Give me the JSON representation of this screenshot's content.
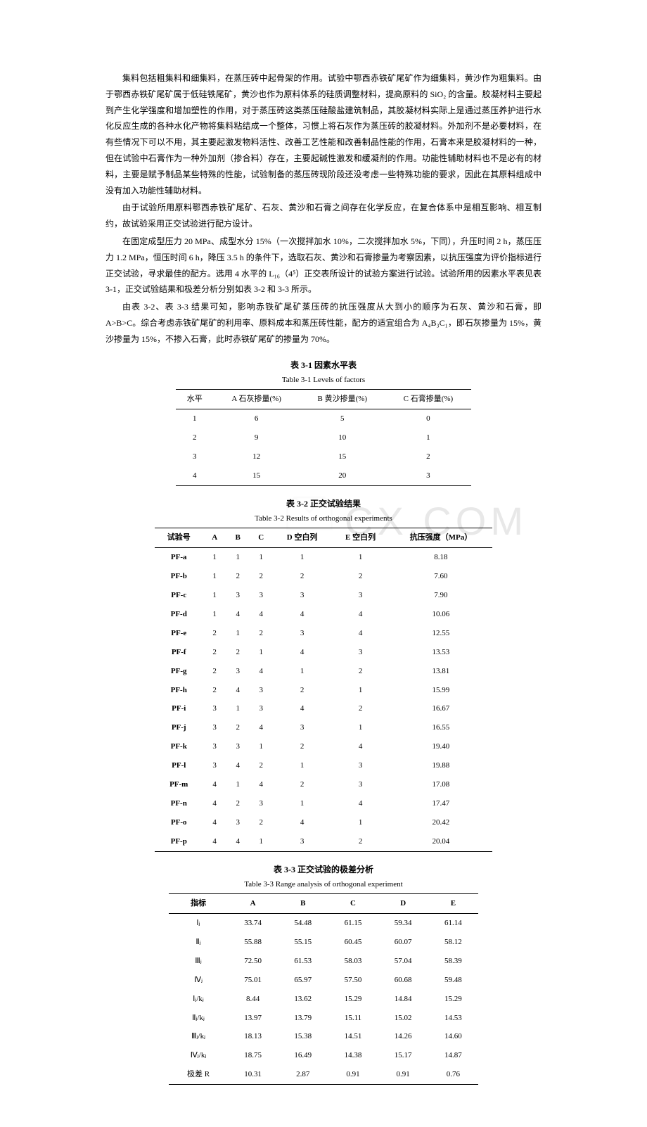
{
  "paragraphs": [
    "集料包括粗集料和细集料，在蒸压砖中起骨架的作用。试验中鄂西赤铁矿尾矿作为细集料，黄沙作为粗集料。由于鄂西赤铁矿尾矿属于低硅铁尾矿，黄沙也作为原料体系的硅质调整材料，提高原料的 SiO₂ 的含量。胶凝材料主要起到产生化学强度和增加塑性的作用，对于蒸压砖这类蒸压硅酸盐建筑制品，其胶凝材料实际上是通过蒸压养护进行水化反应生成的各种水化产物将集料粘结成一个整体，习惯上将石灰作为蒸压砖的胶凝材料。外加剂不是必要材料，在有些情况下可以不用，其主要起激发物料活性、改善工艺性能和改善制品性能的作用，石膏本来是胶凝材料的一种，但在试验中石膏作为一种外加剂（掺合料）存在，主要起碱性激发和缓凝剂的作用。功能性辅助材料也不是必有的材料，主要是赋予制品某些特殊的性能，试验制备的蒸压砖现阶段还没考虑一些特殊功能的要求，因此在其原料组成中没有加入功能性辅助材料。",
    "由于试验所用原料鄂西赤铁矿尾矿、石灰、黄沙和石膏之间存在化学反应，在复合体系中是相互影响、相互制约，故试验采用正交试验进行配方设计。",
    "在固定成型压力 20 MPa、成型水分 15%（一次搅拌加水 10%，二次搅拌加水 5%，下同），升压时间 2 h，蒸压压力 1.2 MPa，恒压时间 6 h，降压 3.5 h 的条件下，选取石灰、黄沙和石膏掺量为考察因素，以抗压强度为评价指标进行正交试验，寻求最佳的配方。选用 4 水平的 L₁₆（4⁵）正交表所设计的试验方案进行试验。试验所用的因素水平表见表 3-1，正交试验结果和极差分析分别如表 3-2 和 3-3 所示。",
    "由表 3-2、表 3-3 结果可知，影响赤铁矿尾矿蒸压砖的抗压强度从大到小的顺序为石灰、黄沙和石膏，即 A>B>C。综合考虑赤铁矿尾矿的利用率、原料成本和蒸压砖性能，配方的适宜组合为 A₄B₃C₁，即石灰掺量为 15%，黄沙掺量为 15%，不掺入石膏，此时赤铁矿尾矿的掺量为 70%。"
  ],
  "table31": {
    "caption": "表 3-1  因素水平表",
    "subcaption": "Table 3-1 Levels of factors",
    "headers": [
      "水平",
      "A 石灰掺量(%)",
      "B 黄沙掺量(%)",
      "C 石膏掺量(%)"
    ],
    "rows": [
      [
        "1",
        "6",
        "5",
        "0"
      ],
      [
        "2",
        "9",
        "10",
        "1"
      ],
      [
        "3",
        "12",
        "15",
        "2"
      ],
      [
        "4",
        "15",
        "20",
        "3"
      ]
    ]
  },
  "table32": {
    "caption": "表 3-2  正交试验结果",
    "subcaption": "Table 3-2 Results of orthogonal experiments",
    "headers": [
      "试验号",
      "A",
      "B",
      "C",
      "D 空白列",
      "E 空白列",
      "抗压强度（MPa）"
    ],
    "rows": [
      [
        "PF-a",
        "1",
        "1",
        "1",
        "1",
        "1",
        "8.18"
      ],
      [
        "PF-b",
        "1",
        "2",
        "2",
        "2",
        "2",
        "7.60"
      ],
      [
        "PF-c",
        "1",
        "3",
        "3",
        "3",
        "3",
        "7.90"
      ],
      [
        "PF-d",
        "1",
        "4",
        "4",
        "4",
        "4",
        "10.06"
      ],
      [
        "PF-e",
        "2",
        "1",
        "2",
        "3",
        "4",
        "12.55"
      ],
      [
        "PF-f",
        "2",
        "2",
        "1",
        "4",
        "3",
        "13.53"
      ],
      [
        "PF-g",
        "2",
        "3",
        "4",
        "1",
        "2",
        "13.81"
      ],
      [
        "PF-h",
        "2",
        "4",
        "3",
        "2",
        "1",
        "15.99"
      ],
      [
        "PF-i",
        "3",
        "1",
        "3",
        "4",
        "2",
        "16.67"
      ],
      [
        "PF-j",
        "3",
        "2",
        "4",
        "3",
        "1",
        "16.55"
      ],
      [
        "PF-k",
        "3",
        "3",
        "1",
        "2",
        "4",
        "19.40"
      ],
      [
        "PF-l",
        "3",
        "4",
        "2",
        "1",
        "3",
        "19.88"
      ],
      [
        "PF-m",
        "4",
        "1",
        "4",
        "2",
        "3",
        "17.08"
      ],
      [
        "PF-n",
        "4",
        "2",
        "3",
        "1",
        "4",
        "17.47"
      ],
      [
        "PF-o",
        "4",
        "3",
        "2",
        "4",
        "1",
        "20.42"
      ],
      [
        "PF-p",
        "4",
        "4",
        "1",
        "3",
        "2",
        "20.04"
      ]
    ]
  },
  "table33": {
    "caption": "表 3-3  正交试验的极差分析",
    "subcaption": "Table 3-3 Range analysis of orthogonal experiment",
    "headers": [
      "指标",
      "A",
      "B",
      "C",
      "D",
      "E"
    ],
    "rows": [
      [
        "Ⅰⱼ",
        "33.74",
        "54.48",
        "61.15",
        "59.34",
        "61.14"
      ],
      [
        "Ⅱⱼ",
        "55.88",
        "55.15",
        "60.45",
        "60.07",
        "58.12"
      ],
      [
        "Ⅲⱼ",
        "72.50",
        "61.53",
        "58.03",
        "57.04",
        "58.39"
      ],
      [
        "Ⅳⱼ",
        "75.01",
        "65.97",
        "57.50",
        "60.68",
        "59.48"
      ],
      [
        "Ⅰⱼ/kⱼ",
        "8.44",
        "13.62",
        "15.29",
        "14.84",
        "15.29"
      ],
      [
        "Ⅱⱼ/kⱼ",
        "13.97",
        "13.79",
        "15.11",
        "15.02",
        "14.53"
      ],
      [
        "Ⅲⱼ/kⱼ",
        "18.13",
        "15.38",
        "14.51",
        "14.26",
        "14.60"
      ],
      [
        "Ⅳⱼ/kⱼ",
        "18.75",
        "16.49",
        "14.38",
        "15.17",
        "14.87"
      ],
      [
        "极差 R",
        "10.31",
        "2.87",
        "0.91",
        "0.91",
        "0.76"
      ]
    ]
  },
  "watermark": {
    "text": "CX.COM",
    "color": "#e8e8e8"
  }
}
